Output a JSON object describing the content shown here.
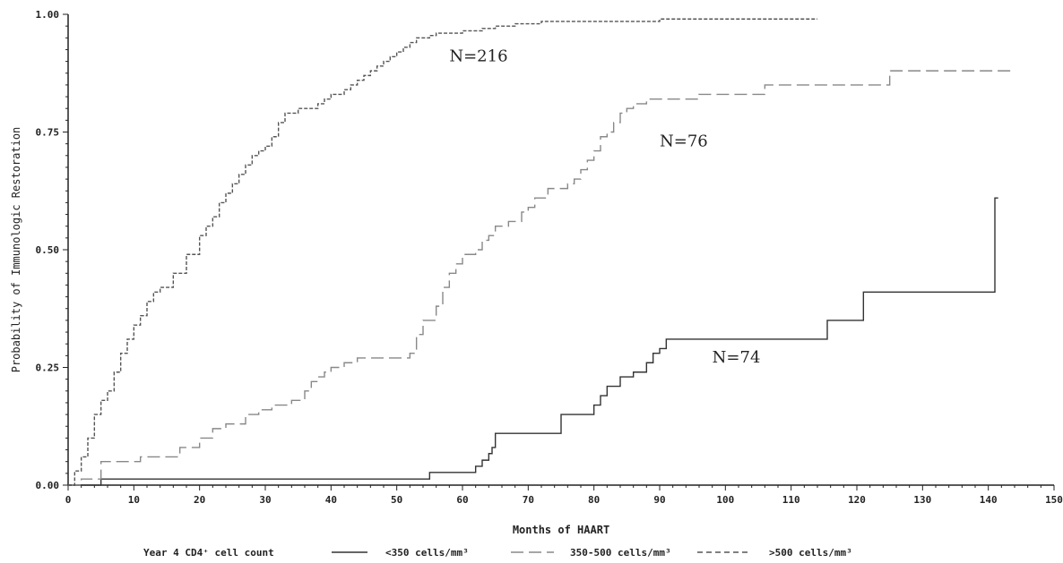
{
  "chart_data": {
    "type": "line",
    "step": true,
    "xlabel": "Months of HAART",
    "ylabel": "Probability of Immunologic Restoration",
    "xlim": [
      0,
      150
    ],
    "ylim": [
      0,
      1
    ],
    "xticks": [
      "0",
      "10",
      "20",
      "30",
      "40",
      "50",
      "60",
      "70",
      "80",
      "90",
      "100",
      "110",
      "120",
      "130",
      "140",
      "150"
    ],
    "yticks": [
      "0.00",
      "0.25",
      "0.50",
      "0.75",
      "1.00"
    ],
    "grid": false,
    "legend": {
      "title": "Year 4 CD4⁺ cell count",
      "placement": "bottom"
    },
    "annotations": [
      {
        "text": "N=216",
        "x": 58,
        "y": 0.9
      },
      {
        "text": "N=76",
        "x": 90,
        "y": 0.72
      },
      {
        "text": "N=74",
        "x": 98,
        "y": 0.26
      }
    ],
    "series": [
      {
        "name": "<350 cells/mm³",
        "style": "solid",
        "color": "#333333",
        "x": [
          0,
          5,
          55,
          62,
          63,
          64,
          64.5,
          65,
          75,
          80,
          81,
          82,
          84,
          86,
          88,
          89,
          90,
          91,
          115.5,
          121,
          141,
          141.5
        ],
        "y": [
          0,
          0.013,
          0.027,
          0.04,
          0.053,
          0.067,
          0.08,
          0.11,
          0.15,
          0.17,
          0.19,
          0.21,
          0.23,
          0.24,
          0.26,
          0.28,
          0.29,
          0.31,
          0.35,
          0.41,
          0.61,
          0.61
        ]
      },
      {
        "name": "350-500 cells/mm³",
        "style": "dashed",
        "color": "#888888",
        "x": [
          0,
          2,
          5,
          11,
          17,
          20,
          22,
          24,
          27,
          29,
          31,
          34,
          36,
          37,
          38,
          39,
          40,
          42,
          44,
          52,
          53,
          54,
          56,
          57,
          58,
          59,
          60,
          62,
          63,
          64,
          65,
          67,
          69,
          70,
          71,
          73,
          76,
          77,
          78,
          79,
          80,
          81,
          82,
          83,
          84,
          85,
          86,
          88,
          96,
          106,
          125,
          144
        ],
        "y": [
          0,
          0.013,
          0.05,
          0.06,
          0.08,
          0.1,
          0.12,
          0.13,
          0.15,
          0.16,
          0.17,
          0.18,
          0.2,
          0.22,
          0.23,
          0.24,
          0.25,
          0.26,
          0.27,
          0.28,
          0.32,
          0.35,
          0.38,
          0.42,
          0.45,
          0.47,
          0.49,
          0.5,
          0.52,
          0.53,
          0.55,
          0.56,
          0.58,
          0.59,
          0.61,
          0.63,
          0.64,
          0.65,
          0.67,
          0.69,
          0.71,
          0.74,
          0.75,
          0.77,
          0.79,
          0.8,
          0.81,
          0.82,
          0.83,
          0.85,
          0.88,
          0.88
        ]
      },
      {
        "name": ">500 cells/mm³",
        "style": "dotted",
        "color": "#555555",
        "x": [
          0,
          1,
          2,
          3,
          4,
          5,
          6,
          7,
          8,
          9,
          10,
          11,
          12,
          13,
          14,
          16,
          18,
          20,
          21,
          22,
          23,
          24,
          25,
          26,
          27,
          28,
          29,
          30,
          31,
          32,
          33,
          35,
          37,
          38,
          39,
          40,
          41,
          42,
          43,
          44,
          45,
          46,
          47,
          48,
          49,
          50,
          51,
          52,
          53,
          55,
          56,
          58,
          60,
          62,
          63,
          65,
          68,
          72,
          80,
          90,
          114
        ],
        "y": [
          0,
          0.03,
          0.06,
          0.1,
          0.15,
          0.18,
          0.2,
          0.24,
          0.28,
          0.31,
          0.34,
          0.36,
          0.39,
          0.41,
          0.42,
          0.45,
          0.49,
          0.53,
          0.55,
          0.57,
          0.6,
          0.62,
          0.64,
          0.66,
          0.68,
          0.7,
          0.71,
          0.72,
          0.74,
          0.77,
          0.79,
          0.8,
          0.8,
          0.81,
          0.82,
          0.83,
          0.83,
          0.84,
          0.85,
          0.86,
          0.87,
          0.88,
          0.89,
          0.9,
          0.91,
          0.92,
          0.93,
          0.94,
          0.95,
          0.955,
          0.96,
          0.96,
          0.965,
          0.965,
          0.97,
          0.975,
          0.98,
          0.985,
          0.985,
          0.99,
          0.99
        ]
      }
    ]
  }
}
